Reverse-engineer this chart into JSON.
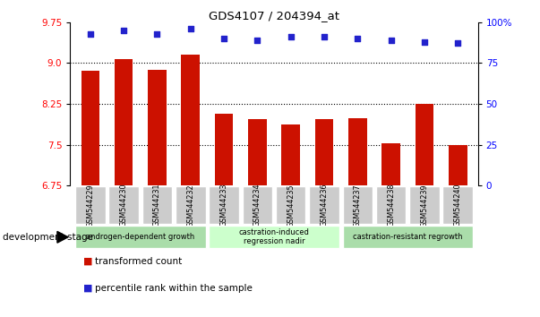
{
  "title": "GDS4107 / 204394_at",
  "categories": [
    "GSM544229",
    "GSM544230",
    "GSM544231",
    "GSM544232",
    "GSM544233",
    "GSM544234",
    "GSM544235",
    "GSM544236",
    "GSM544237",
    "GSM544238",
    "GSM544239",
    "GSM544240"
  ],
  "bar_values": [
    8.85,
    9.07,
    8.87,
    9.15,
    8.07,
    7.97,
    7.87,
    7.97,
    7.98,
    7.52,
    8.25,
    7.5
  ],
  "scatter_values": [
    93,
    95,
    93,
    96,
    90,
    89,
    91,
    91,
    90,
    89,
    88,
    87
  ],
  "ylim_left": [
    6.75,
    9.75
  ],
  "ylim_right": [
    0,
    100
  ],
  "yticks_left": [
    6.75,
    7.5,
    8.25,
    9.0,
    9.75
  ],
  "yticks_right": [
    0,
    25,
    50,
    75,
    100
  ],
  "ytick_labels_right": [
    "0",
    "25",
    "50",
    "75",
    "100%"
  ],
  "bar_color": "#CC1100",
  "scatter_color": "#2222CC",
  "groups": [
    {
      "label": "androgen-dependent growth",
      "start": 0,
      "end": 3,
      "color": "#AADDAA"
    },
    {
      "label": "castration-induced\nregression nadir",
      "start": 4,
      "end": 7,
      "color": "#CCFFCC"
    },
    {
      "label": "castration-resistant regrowth",
      "start": 8,
      "end": 11,
      "color": "#AADDAA"
    }
  ],
  "legend_items": [
    {
      "label": "transformed count",
      "color": "#CC1100"
    },
    {
      "label": "percentile rank within the sample",
      "color": "#2222CC"
    }
  ],
  "development_stage_label": "development stage",
  "tick_label_bg": "#CCCCCC"
}
